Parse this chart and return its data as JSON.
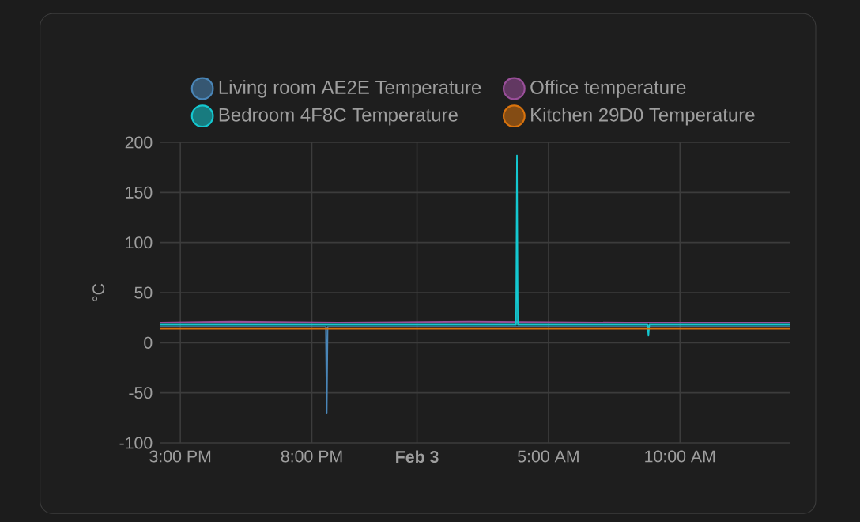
{
  "chart_data": {
    "type": "line",
    "ylabel": "°C",
    "legend": "top",
    "grid": true,
    "marker": "none",
    "line_style": "solid",
    "xlim": [
      "--02-02T14:14",
      "--02-03T14:12"
    ],
    "ylim": [
      -100,
      200
    ],
    "xticks": [
      {
        "value": "--02-02T15:00",
        "label": "3:00 PM"
      },
      {
        "value": "--02-02T20:00",
        "label": "8:00 PM"
      },
      {
        "value": "--02-03T00:00",
        "label": "Feb 3"
      },
      {
        "value": "--02-03T05:00",
        "label": "5:00 AM"
      },
      {
        "value": "--02-03T10:00",
        "label": "10:00 AM"
      }
    ],
    "yticks": [
      -100,
      -50,
      0,
      50,
      100,
      150,
      200
    ],
    "series": [
      {
        "name": "Living room AE2E Temperature",
        "color": "#4a86b8",
        "x": [
          "--02-02T14:14",
          "--02-02T20:32",
          "--02-02T20:34",
          "--02-02T20:36",
          "--02-03T14:12"
        ],
        "values": [
          16,
          16,
          -70,
          16,
          16
        ]
      },
      {
        "name": "Office temperature",
        "color": "#9a4f9a",
        "x": [
          "--02-02T14:14",
          "--02-02T17:00",
          "--02-02T21:00",
          "--02-03T02:00",
          "--02-03T08:00",
          "--02-03T14:12"
        ],
        "values": [
          20,
          21,
          20,
          21,
          20,
          20
        ]
      },
      {
        "name": "Bedroom 4F8C Temperature",
        "color": "#14c8d0",
        "x": [
          "--02-02T14:14",
          "--02-03T03:46",
          "--02-03T03:48",
          "--02-03T03:50",
          "--02-03T08:46",
          "--02-03T08:48",
          "--02-03T08:50",
          "--02-03T14:12"
        ],
        "values": [
          18,
          18,
          187,
          18,
          18,
          7,
          18,
          18
        ]
      },
      {
        "name": "Kitchen 29D0 Temperature",
        "color": "#d9730d",
        "x": [
          "--02-02T14:14",
          "--02-03T14:12"
        ],
        "values": [
          14,
          14
        ]
      }
    ]
  }
}
